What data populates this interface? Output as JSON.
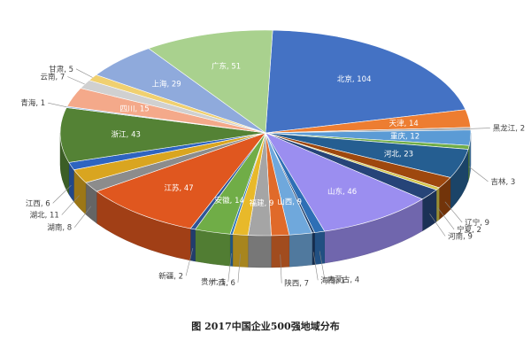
{
  "caption": "图  2017中国企业500强地域分布",
  "chart_data": {
    "type": "pie",
    "title": "图  2017中国企业500强地域分布",
    "legend": "none",
    "slices": [
      {
        "name": "北京",
        "value": 104,
        "label": "北京, 104",
        "color": "#4472C4",
        "inside": true
      },
      {
        "name": "天津",
        "value": 14,
        "label": "天津, 14",
        "color": "#ED7D31",
        "inside": true
      },
      {
        "name": "黑龙江",
        "value": 2,
        "label": "黑龙江, 2",
        "color": "#A5A5A5",
        "inside": false
      },
      {
        "name": "重庆",
        "value": 12,
        "label": "重庆, 12",
        "color": "#5B9BD5",
        "inside": true
      },
      {
        "name": "吉林",
        "value": 3,
        "label": "吉林, 3",
        "color": "#70AD47",
        "inside": false
      },
      {
        "name": "河北",
        "value": 23,
        "label": "河北, 23",
        "color": "#255E91",
        "inside": true
      },
      {
        "name": "辽宁",
        "value": 9,
        "label": "辽宁, 9",
        "color": "#9E480E",
        "inside": false
      },
      {
        "name": "宁夏",
        "value": 2,
        "label": "宁夏, 2",
        "color": "#D4C64A",
        "inside": false
      },
      {
        "name": "河南",
        "value": 9,
        "label": "河南, 9",
        "color": "#264478",
        "inside": false
      },
      {
        "name": "山东",
        "value": 46,
        "label": "山东, 46",
        "color": "#9B8EF0",
        "inside": true
      },
      {
        "name": "内蒙古",
        "value": 4,
        "label": "内蒙古, 4",
        "color": "#2E6FB5",
        "inside": false
      },
      {
        "name": "海南",
        "value": 1,
        "label": "海南, 1",
        "color": "#1F3F6B",
        "inside": false
      },
      {
        "name": "山西",
        "value": 9,
        "label": "山西, 9",
        "color": "#6FA8DC",
        "inside": true
      },
      {
        "name": "陕西",
        "value": 7,
        "label": "陕西, 7",
        "color": "#E06A2A",
        "inside": false
      },
      {
        "name": "福建",
        "value": 9,
        "label": "福建, 9",
        "color": "#A5A5A5",
        "inside": true
      },
      {
        "name": "广西",
        "value": 6,
        "label": "广西, 6",
        "color": "#E8B92A",
        "inside": false
      },
      {
        "name": "贵州",
        "value": 1,
        "label": "贵州, 1",
        "color": "#2E75B6",
        "inside": false
      },
      {
        "name": "安徽",
        "value": 14,
        "label": "安徽, 14",
        "color": "#70AD47",
        "inside": true
      },
      {
        "name": "新疆",
        "value": 2,
        "label": "新疆, 2",
        "color": "#2F5597",
        "inside": false
      },
      {
        "name": "江苏",
        "value": 47,
        "label": "江苏, 47",
        "color": "#E0571F",
        "inside": true
      },
      {
        "name": "湖南",
        "value": 8,
        "label": "湖南, 8",
        "color": "#8C8C8C",
        "inside": false
      },
      {
        "name": "湖北",
        "value": 11,
        "label": "湖北, 11",
        "color": "#D9A520",
        "inside": false
      },
      {
        "name": "江西",
        "value": 6,
        "label": "江西, 6",
        "color": "#2E64C0",
        "inside": false
      },
      {
        "name": "浙江",
        "value": 43,
        "label": "浙江, 43",
        "color": "#548235",
        "inside": true
      },
      {
        "name": "青海",
        "value": 1,
        "label": "青海, 1",
        "color": "#8CB4E0",
        "inside": false
      },
      {
        "name": "四川",
        "value": 15,
        "label": "四川, 15",
        "color": "#F4A98A",
        "inside": true
      },
      {
        "name": "云南",
        "value": 7,
        "label": "云南, 7",
        "color": "#D0D0D0",
        "inside": false
      },
      {
        "name": "甘肃",
        "value": 5,
        "label": "甘肃, 5",
        "color": "#F0D070",
        "inside": false
      },
      {
        "name": "上海",
        "value": 29,
        "label": "上海, 29",
        "color": "#8FAADC",
        "inside": true
      },
      {
        "name": "广东",
        "value": 51,
        "label": "广东, 51",
        "color": "#A9D18E",
        "inside": true
      }
    ]
  }
}
